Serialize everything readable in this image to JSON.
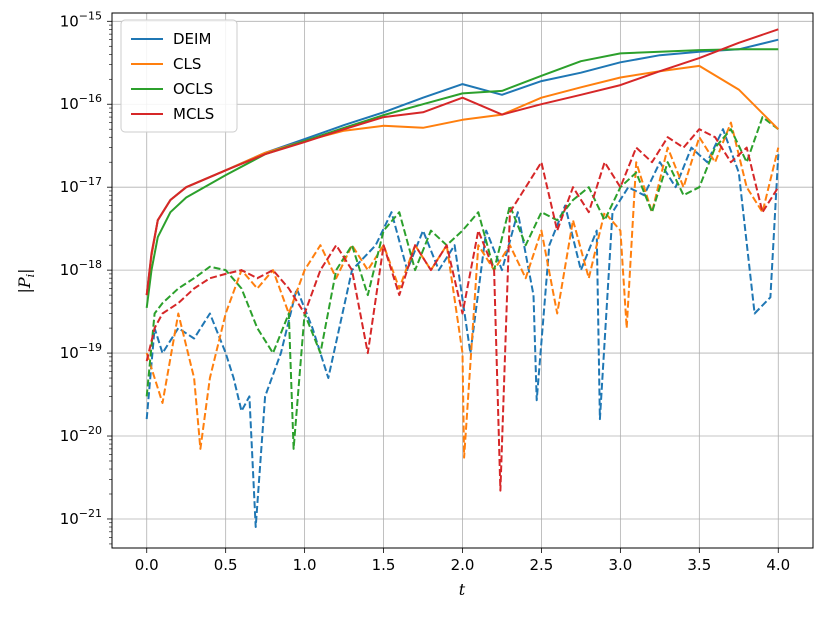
{
  "chart_data": {
    "type": "line",
    "title": "",
    "xlabel": "t",
    "ylabel": "|P_i|",
    "xlim": [
      -0.22,
      4.22
    ],
    "ylim_log10": [
      -21.35,
      -14.9
    ],
    "y_scale": "log",
    "grid": true,
    "legend_position": "top-left",
    "x_ticks": [
      0.0,
      0.5,
      1.0,
      1.5,
      2.0,
      2.5,
      3.0,
      3.5,
      4.0
    ],
    "x_tick_labels": [
      "0.0",
      "0.5",
      "1.0",
      "1.5",
      "2.0",
      "2.5",
      "3.0",
      "3.5",
      "4.0"
    ],
    "y_tick_exponents": [
      -21,
      -20,
      -19,
      -18,
      -17,
      -16,
      -15
    ],
    "y_tick_base": "10",
    "legend": [
      "DEIM",
      "CLS",
      "OCLS",
      "MCLS"
    ],
    "series": [
      {
        "name": "DEIM",
        "color": "#1f77b4",
        "style": "solid",
        "x": [
          0.0,
          0.03,
          0.07,
          0.15,
          0.25,
          0.5,
          0.75,
          1.0,
          1.25,
          1.5,
          1.75,
          2.0,
          2.25,
          2.5,
          2.75,
          3.0,
          3.25,
          3.5,
          3.75,
          4.0
        ],
        "y": [
          5e-19,
          1.5e-18,
          4e-18,
          7e-18,
          1e-17,
          1.6e-17,
          2.6e-17,
          3.8e-17,
          5.6e-17,
          8e-17,
          1.2e-16,
          1.75e-16,
          1.3e-16,
          1.9e-16,
          2.4e-16,
          3.2e-16,
          3.9e-16,
          4.3e-16,
          4.6e-16,
          6e-16
        ]
      },
      {
        "name": "CLS",
        "color": "#ff7f0e",
        "style": "solid",
        "x": [
          0.0,
          0.03,
          0.07,
          0.15,
          0.25,
          0.5,
          0.75,
          1.0,
          1.25,
          1.5,
          1.75,
          2.0,
          2.25,
          2.5,
          2.75,
          3.0,
          3.25,
          3.5,
          3.75,
          4.0
        ],
        "y": [
          5e-19,
          1.5e-18,
          4e-18,
          7e-18,
          1e-17,
          1.6e-17,
          2.6e-17,
          3.6e-17,
          4.8e-17,
          5.5e-17,
          5.2e-17,
          6.5e-17,
          7.5e-17,
          1.2e-16,
          1.6e-16,
          2.1e-16,
          2.5e-16,
          2.9e-16,
          1.5e-16,
          5e-17
        ]
      },
      {
        "name": "OCLS",
        "color": "#2ca02c",
        "style": "solid",
        "x": [
          0.0,
          0.03,
          0.07,
          0.15,
          0.25,
          0.5,
          0.75,
          1.0,
          1.25,
          1.5,
          1.75,
          2.0,
          2.25,
          2.5,
          2.75,
          3.0,
          3.25,
          3.5,
          3.75,
          4.0
        ],
        "y": [
          3.5e-19,
          1e-18,
          2.5e-18,
          5e-18,
          7.5e-18,
          1.4e-17,
          2.5e-17,
          3.6e-17,
          5.2e-17,
          7.4e-17,
          1e-16,
          1.35e-16,
          1.45e-16,
          2.2e-16,
          3.3e-16,
          4.1e-16,
          4.3e-16,
          4.5e-16,
          4.6e-16,
          4.6e-16
        ]
      },
      {
        "name": "MCLS",
        "color": "#d62728",
        "style": "solid",
        "x": [
          0.0,
          0.03,
          0.07,
          0.15,
          0.25,
          0.5,
          0.75,
          1.0,
          1.25,
          1.5,
          1.75,
          2.0,
          2.25,
          2.5,
          2.75,
          3.0,
          3.25,
          3.5,
          3.75,
          4.0
        ],
        "y": [
          5e-19,
          1.6e-18,
          4e-18,
          7e-18,
          1e-17,
          1.6e-17,
          2.5e-17,
          3.5e-17,
          5e-17,
          7e-17,
          8e-17,
          1.2e-16,
          7.5e-17,
          1e-16,
          1.3e-16,
          1.7e-16,
          2.5e-16,
          3.6e-16,
          5.5e-16,
          8e-16
        ]
      },
      {
        "color": "#1f77b4",
        "style": "dashed",
        "x": [
          0.0,
          0.05,
          0.1,
          0.2,
          0.3,
          0.4,
          0.5,
          0.55,
          0.6,
          0.65,
          0.69,
          0.75,
          0.85,
          0.95,
          1.05,
          1.15,
          1.3,
          1.45,
          1.55,
          1.65,
          1.75,
          1.85,
          1.95,
          2.05,
          2.15,
          2.25,
          2.35,
          2.45,
          2.47,
          2.55,
          2.65,
          2.75,
          2.85,
          2.87,
          2.95,
          3.05,
          3.15,
          3.25,
          3.35,
          3.45,
          3.55,
          3.65,
          3.75,
          3.85,
          3.95,
          4.0
        ],
        "y": [
          1.6e-20,
          2e-19,
          1e-19,
          2e-19,
          1.5e-19,
          3e-19,
          1e-19,
          5e-20,
          2e-20,
          3e-20,
          8e-22,
          3e-20,
          1e-19,
          6e-19,
          2e-19,
          5e-20,
          1e-18,
          2e-18,
          5e-18,
          1e-18,
          3e-18,
          1e-18,
          2e-18,
          1e-19,
          3e-18,
          1e-18,
          5e-18,
          5e-19,
          2.7e-20,
          2e-18,
          6e-18,
          1e-18,
          3e-18,
          1.6e-20,
          5e-18,
          1e-17,
          8e-18,
          2e-17,
          1e-17,
          3e-17,
          2e-17,
          5e-17,
          1.5e-17,
          3e-19,
          4.7e-19,
          2.5e-17
        ]
      },
      {
        "color": "#ff7f0e",
        "style": "dashed",
        "x": [
          0.0,
          0.05,
          0.1,
          0.2,
          0.3,
          0.34,
          0.4,
          0.5,
          0.6,
          0.7,
          0.8,
          0.9,
          1.0,
          1.1,
          1.2,
          1.3,
          1.4,
          1.5,
          1.6,
          1.7,
          1.8,
          1.9,
          2.0,
          2.01,
          2.1,
          2.2,
          2.3,
          2.4,
          2.5,
          2.6,
          2.7,
          2.8,
          2.9,
          3.0,
          3.04,
          3.1,
          3.2,
          3.3,
          3.4,
          3.5,
          3.6,
          3.7,
          3.8,
          3.9,
          4.0
        ],
        "y": [
          1e-19,
          5e-20,
          2.5e-20,
          3e-19,
          5e-20,
          7e-21,
          5e-20,
          3e-19,
          1e-18,
          6e-19,
          1e-18,
          3e-19,
          1e-18,
          2e-18,
          8e-19,
          2e-18,
          1e-18,
          2e-18,
          6e-19,
          2e-18,
          1e-18,
          2e-18,
          1e-19,
          5.5e-21,
          2e-18,
          1e-18,
          2e-18,
          8e-19,
          3e-18,
          3e-19,
          4e-18,
          8e-19,
          5e-18,
          3e-18,
          2e-19,
          2e-17,
          5e-18,
          3e-17,
          1e-17,
          4e-17,
          2e-17,
          6e-17,
          1e-17,
          5e-18,
          3e-17
        ]
      },
      {
        "color": "#2ca02c",
        "style": "dashed",
        "x": [
          0.0,
          0.05,
          0.1,
          0.2,
          0.3,
          0.4,
          0.5,
          0.6,
          0.7,
          0.8,
          0.9,
          0.93,
          1.0,
          1.1,
          1.2,
          1.3,
          1.4,
          1.5,
          1.6,
          1.7,
          1.8,
          1.9,
          2.0,
          2.1,
          2.2,
          2.3,
          2.4,
          2.5,
          2.6,
          2.7,
          2.8,
          2.9,
          3.0,
          3.1,
          3.2,
          3.3,
          3.4,
          3.5,
          3.6,
          3.7,
          3.8,
          3.9,
          4.0
        ],
        "y": [
          3e-20,
          3e-19,
          4e-19,
          6e-19,
          8e-19,
          1.1e-18,
          1e-18,
          6e-19,
          2e-19,
          1e-19,
          3e-19,
          7e-21,
          3e-19,
          1e-19,
          1e-18,
          2e-18,
          5e-19,
          3e-18,
          5e-18,
          1e-18,
          3e-18,
          2e-18,
          3e-18,
          5e-18,
          1e-18,
          6e-18,
          2e-18,
          5e-18,
          4e-18,
          7e-18,
          1e-17,
          4e-18,
          1e-17,
          1.5e-17,
          5e-18,
          2e-17,
          8e-18,
          1e-17,
          3e-17,
          5e-17,
          2e-17,
          7e-17,
          5e-17
        ]
      },
      {
        "color": "#d62728",
        "style": "dashed",
        "x": [
          0.0,
          0.05,
          0.1,
          0.2,
          0.3,
          0.4,
          0.5,
          0.6,
          0.7,
          0.8,
          0.9,
          1.0,
          1.1,
          1.2,
          1.3,
          1.4,
          1.5,
          1.6,
          1.7,
          1.8,
          1.9,
          2.0,
          2.1,
          2.2,
          2.24,
          2.3,
          2.4,
          2.5,
          2.6,
          2.7,
          2.8,
          2.9,
          3.0,
          3.1,
          3.2,
          3.3,
          3.4,
          3.5,
          3.6,
          3.7,
          3.8,
          3.9,
          4.0
        ],
        "y": [
          8e-20,
          2e-19,
          3e-19,
          4e-19,
          6e-19,
          8e-19,
          9e-19,
          1e-18,
          8e-19,
          1e-18,
          6e-19,
          3e-19,
          1e-18,
          2e-18,
          1e-18,
          1e-19,
          2e-18,
          5e-19,
          2e-18,
          1e-18,
          2e-18,
          3e-19,
          3e-18,
          1e-18,
          2.2e-21,
          5e-18,
          1e-17,
          2e-17,
          3e-18,
          1e-17,
          5e-18,
          2e-17,
          1e-17,
          3e-17,
          2e-17,
          4e-17,
          3e-17,
          5e-17,
          4e-17,
          2e-17,
          3e-17,
          5e-18,
          1e-17
        ]
      }
    ]
  }
}
